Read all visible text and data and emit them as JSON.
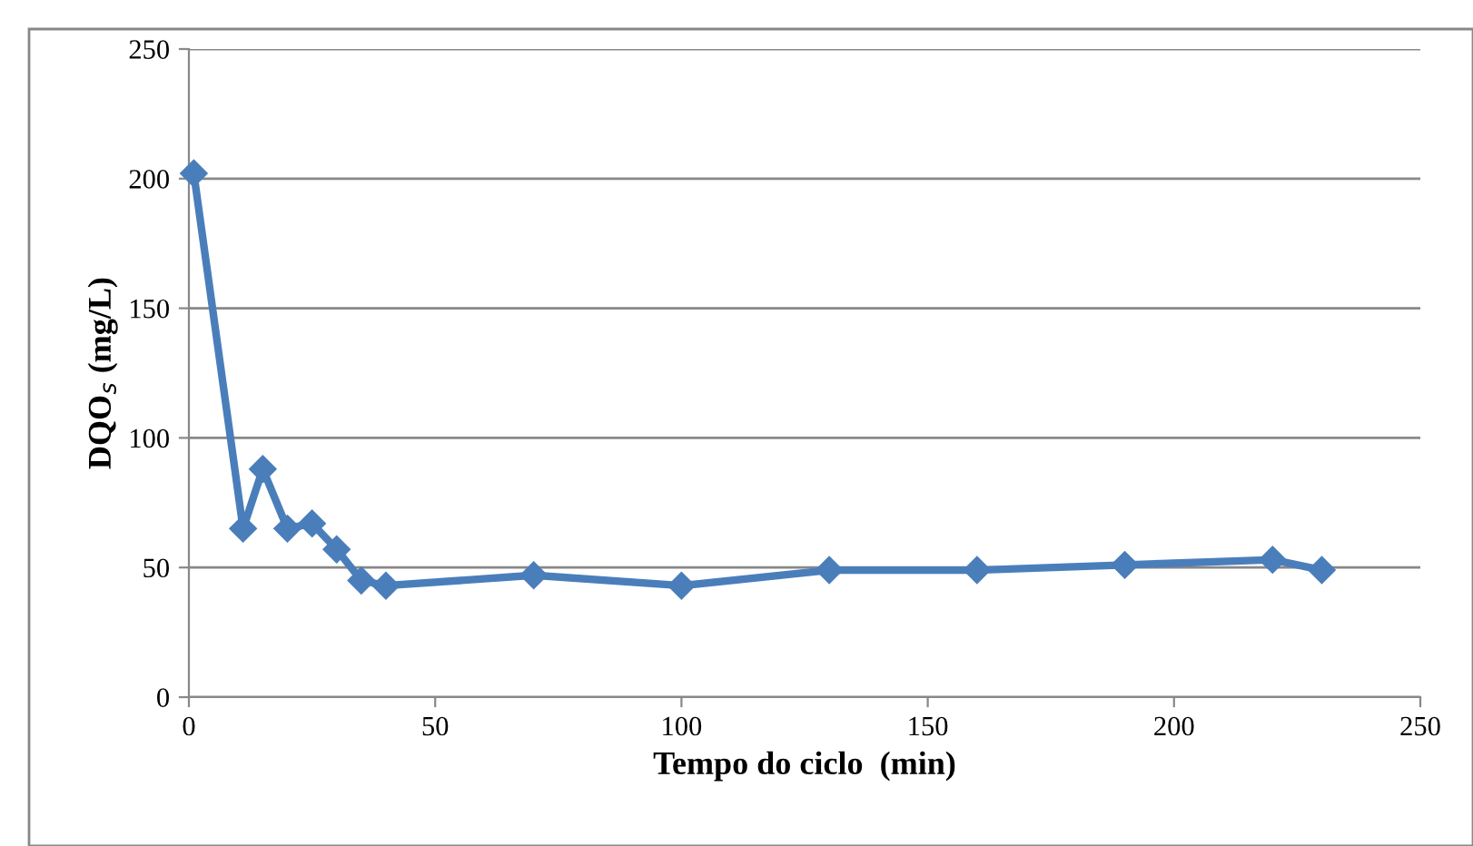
{
  "chart_data": {
    "type": "line",
    "xlabel": "Tempo do ciclo  (min)",
    "ylabel": "DQO$_{s}$ (mg/L)",
    "x": [
      1,
      11,
      15,
      20,
      25,
      30,
      35,
      40,
      70,
      100,
      130,
      160,
      190,
      220,
      230
    ],
    "series": [
      {
        "color": "#4a7ebb",
        "values": [
          202,
          65,
          88,
          65,
          67,
          57,
          45,
          43,
          47,
          43,
          49,
          49,
          51,
          53,
          49
        ]
      }
    ],
    "xlim": [
      0,
      250
    ],
    "xticks": [
      0,
      50,
      100,
      150,
      200,
      250
    ],
    "ylim": [
      0,
      250
    ],
    "yticks": [
      0,
      50,
      100,
      150,
      200,
      250
    ],
    "grid": "y",
    "marker": "diamond",
    "line_style": "solid",
    "legend": false
  }
}
